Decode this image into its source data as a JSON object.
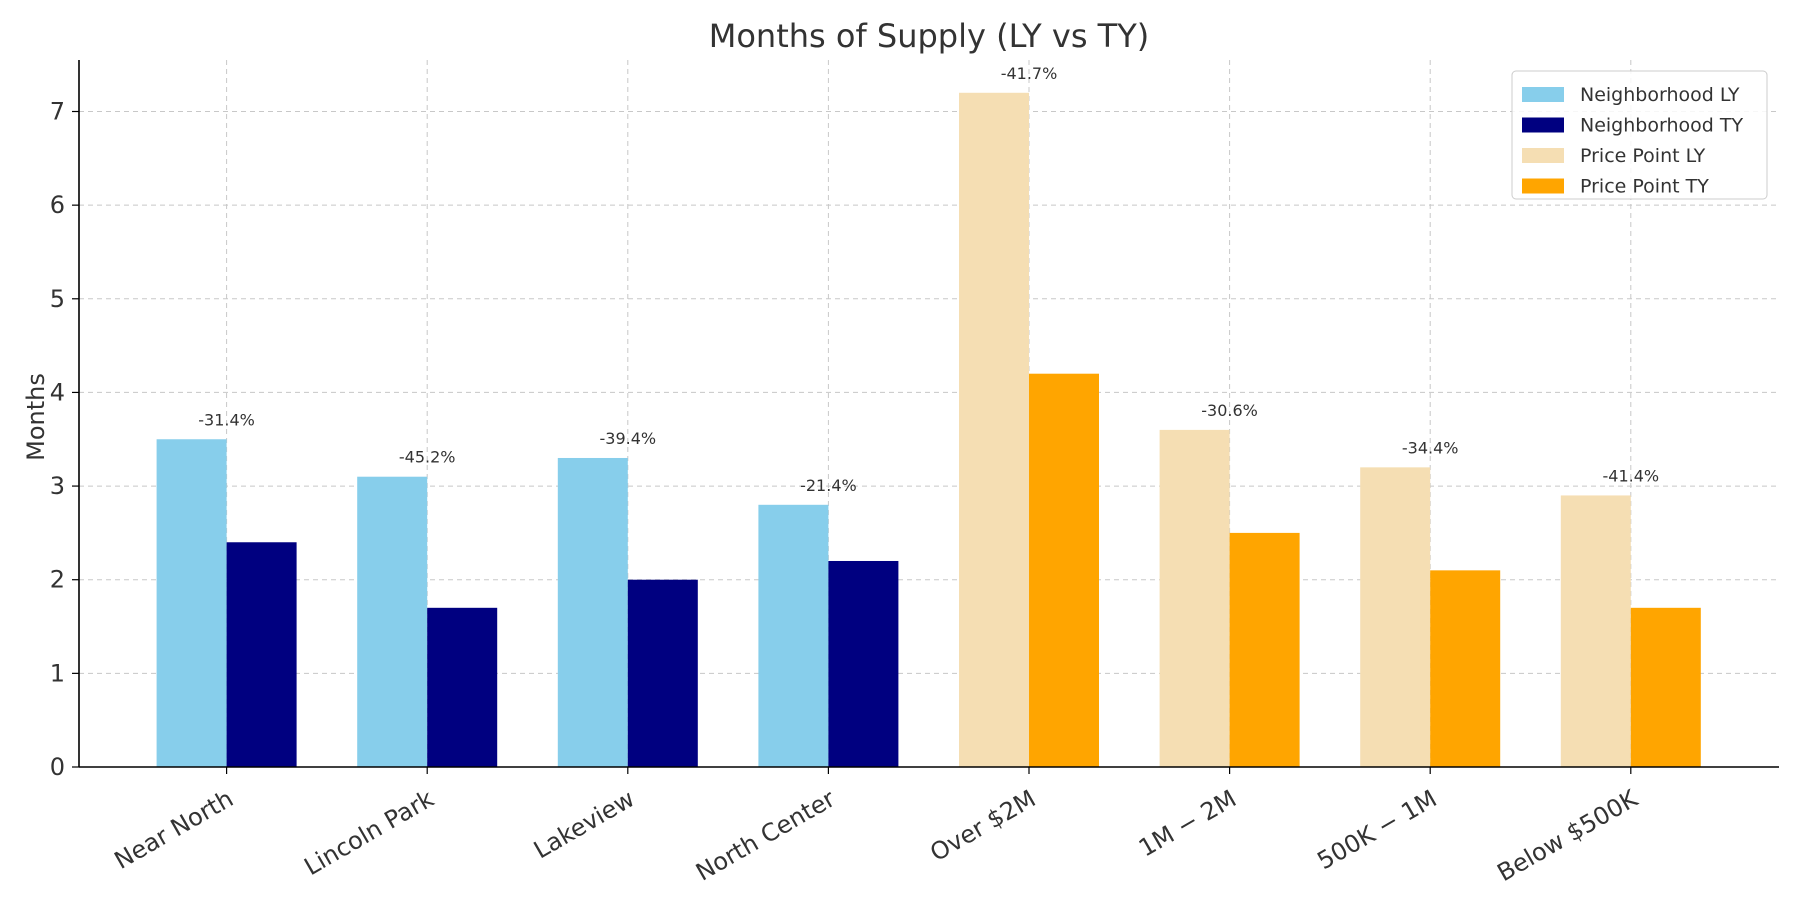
{
  "chart_data": {
    "type": "bar",
    "title": "Months of Supply (LY vs TY)",
    "xlabel": "",
    "ylabel": "Months",
    "ylim": [
      0,
      7.55
    ],
    "yticks": [
      0,
      1,
      2,
      3,
      4,
      5,
      6,
      7
    ],
    "grid": true,
    "legend_position": "top-right",
    "categories": [
      "Near North",
      "Lincoln Park",
      "Lakeview",
      "North Center",
      "Over $2M",
      "$1M-$2M",
      "$500K-$1M",
      "Below $500K"
    ],
    "category_labels": [
      "Near North",
      "Lincoln Park",
      "Lakeview",
      "North Center",
      "Over $2M",
      "1M − 2M",
      "500K − 1M",
      "Below $500K"
    ],
    "groups": [
      "neighborhood",
      "neighborhood",
      "neighborhood",
      "neighborhood",
      "price",
      "price",
      "price",
      "price"
    ],
    "ly_values": [
      3.5,
      3.1,
      3.3,
      2.8,
      7.2,
      3.6,
      3.2,
      2.9
    ],
    "ty_values": [
      2.4,
      1.7,
      2.0,
      2.2,
      4.2,
      2.5,
      2.1,
      1.7
    ],
    "change_labels": [
      "-31.4%",
      "-45.2%",
      "-39.4%",
      "-21.4%",
      "-41.7%",
      "-30.6%",
      "-34.4%",
      "-41.4%"
    ],
    "legend": [
      {
        "name": "Neighborhood LY",
        "color": "#87CEEB"
      },
      {
        "name": "Neighborhood TY",
        "color": "#000080"
      },
      {
        "name": "Price Point LY",
        "color": "#F5DEB3"
      },
      {
        "name": "Price Point TY",
        "color": "#FFA500"
      }
    ],
    "colors": {
      "neighborhood_ly": "#87CEEB",
      "neighborhood_ty": "#000080",
      "price_ly": "#F5DEB3",
      "price_ty": "#FFA500"
    }
  }
}
